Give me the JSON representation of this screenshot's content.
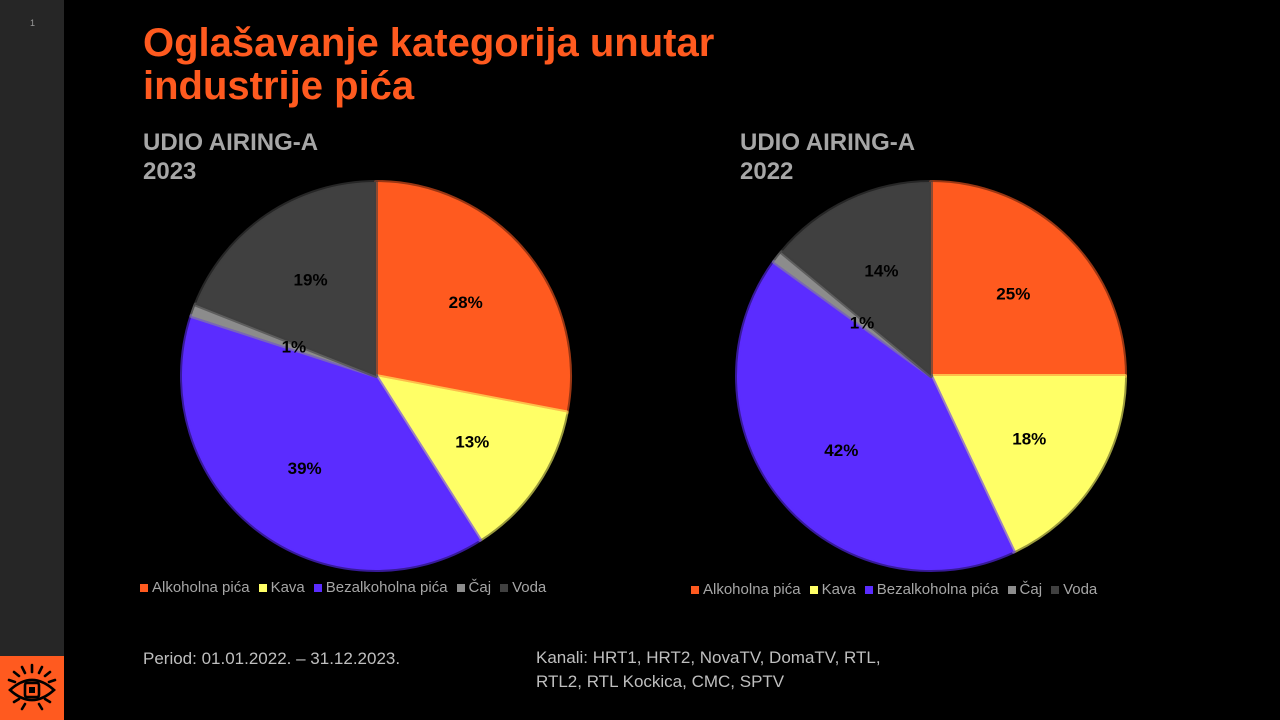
{
  "slide": {
    "number": "1",
    "title": "Oglašavanje kategorija unutar\nindustrije pića",
    "period": "Period: 01.01.2022. – 31.12.2023.",
    "channels": "Kanali: HRT1, HRT2, NovaTV, DomaTV, RTL,\nRTL2, RTL Kockica, CMC, SPTV",
    "logo_icon": "eye-logo-icon"
  },
  "colors": {
    "accent": "#ff5a1f",
    "Alkoholna pića": "#ff5a1f",
    "Kava": "#ffff66",
    "Bezalkoholna pića": "#5b2cff",
    "Čaj": "#8c8c8c",
    "Voda": "#404040"
  },
  "chart_data": [
    {
      "type": "pie",
      "title": "UDIO AIRING-A\n2023",
      "categories": [
        "Alkoholna pića",
        "Kava",
        "Bezalkoholna pića",
        "Čaj",
        "Voda"
      ],
      "values": [
        28,
        13,
        39,
        1,
        19
      ],
      "labels": [
        "28%",
        "13%",
        "39%",
        "1%",
        "19%"
      ],
      "legend_position": "bottom"
    },
    {
      "type": "pie",
      "title": "UDIO AIRING-A\n2022",
      "categories": [
        "Alkoholna pića",
        "Kava",
        "Bezalkoholna pića",
        "Čaj",
        "Voda"
      ],
      "values": [
        25,
        18,
        42,
        1,
        14
      ],
      "labels": [
        "25%",
        "18%",
        "42%",
        "1%",
        "14%"
      ],
      "legend_position": "bottom"
    }
  ]
}
